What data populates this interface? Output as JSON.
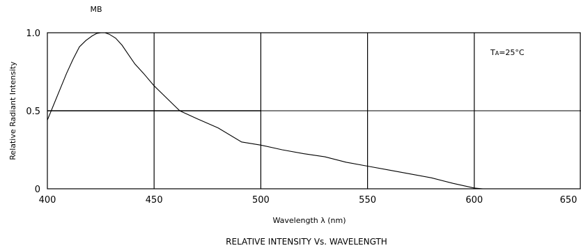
{
  "chart_data": {
    "type": "line",
    "series_label": "MB",
    "annotation": "TA=25°C",
    "annotation_main": "T",
    "annotation_sub": "A",
    "annotation_rest": "=25°C",
    "xlabel": "Wavelength λ (nm)",
    "ylabel": "Relative Radiant Intensity",
    "caption": "RELATIVE INTENSITY Vs. WAVELENGTH",
    "xlim": [
      400,
      650
    ],
    "ylim": [
      0,
      1.0
    ],
    "x_ticks": [
      400,
      450,
      500,
      550,
      600,
      650
    ],
    "x_tick_labels": [
      "400",
      "450",
      "500",
      "550",
      "600",
      "650"
    ],
    "y_ticks": [
      0,
      0.5,
      1.0
    ],
    "y_tick_labels": [
      "0",
      "0.5",
      "1.0"
    ],
    "grid": true,
    "series": [
      {
        "x": [
          400,
          403,
          406,
          409,
          412,
          415,
          418,
          421,
          423,
          425,
          427,
          429,
          432,
          435,
          438,
          441,
          445,
          450,
          456,
          462,
          470,
          480,
          491,
          500,
          510,
          520,
          530,
          540,
          550,
          560,
          570,
          580,
          590,
          600,
          604
        ],
        "y": [
          0.44,
          0.54,
          0.64,
          0.74,
          0.83,
          0.91,
          0.95,
          0.98,
          0.995,
          1.0,
          1.0,
          0.99,
          0.965,
          0.92,
          0.86,
          0.8,
          0.74,
          0.66,
          0.58,
          0.5,
          0.45,
          0.39,
          0.3,
          0.28,
          0.25,
          0.225,
          0.205,
          0.17,
          0.145,
          0.12,
          0.095,
          0.07,
          0.035,
          0.005,
          0.0
        ]
      }
    ],
    "reference_line": {
      "y": 0.5,
      "x_from": 400,
      "x_to": 500,
      "thin_from": 500,
      "thin_to": 650
    }
  }
}
